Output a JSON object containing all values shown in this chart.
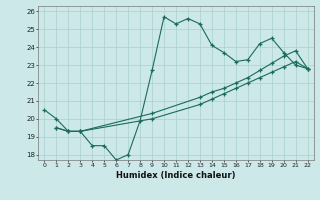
{
  "xlabel": "Humidex (Indice chaleur)",
  "xlim": [
    -0.5,
    22.5
  ],
  "ylim": [
    17.7,
    26.3
  ],
  "xticks": [
    0,
    1,
    2,
    3,
    4,
    5,
    6,
    7,
    8,
    9,
    10,
    11,
    12,
    13,
    14,
    15,
    16,
    17,
    18,
    19,
    20,
    21,
    22
  ],
  "yticks": [
    18,
    19,
    20,
    21,
    22,
    23,
    24,
    25,
    26
  ],
  "bg_color": "#cce8e8",
  "grid_color": "#aacfcf",
  "line_color": "#1a6b5a",
  "line1_x": [
    0,
    1,
    2,
    3,
    4,
    5,
    6,
    7,
    8,
    9,
    10,
    11,
    12,
    13,
    14,
    15,
    16,
    17,
    18,
    19,
    20,
    21,
    22
  ],
  "line1_y": [
    20.5,
    20.0,
    19.3,
    19.3,
    18.5,
    18.5,
    17.7,
    18.0,
    19.9,
    22.7,
    25.7,
    25.3,
    25.6,
    25.3,
    24.1,
    23.7,
    23.2,
    23.3,
    24.2,
    24.5,
    23.7,
    23.0,
    22.8
  ],
  "line2_x": [
    1,
    2,
    3,
    9,
    13,
    14,
    15,
    16,
    17,
    18,
    19,
    20,
    21,
    22
  ],
  "line2_y": [
    19.5,
    19.3,
    19.3,
    20.3,
    21.2,
    21.5,
    21.7,
    22.0,
    22.3,
    22.7,
    23.1,
    23.5,
    23.8,
    22.8
  ],
  "line3_x": [
    1,
    2,
    3,
    9,
    13,
    14,
    15,
    16,
    17,
    18,
    19,
    20,
    21,
    22
  ],
  "line3_y": [
    19.5,
    19.3,
    19.3,
    20.0,
    20.8,
    21.1,
    21.4,
    21.7,
    22.0,
    22.3,
    22.6,
    22.9,
    23.2,
    22.8
  ],
  "figsize": [
    3.2,
    2.0
  ],
  "dpi": 100
}
